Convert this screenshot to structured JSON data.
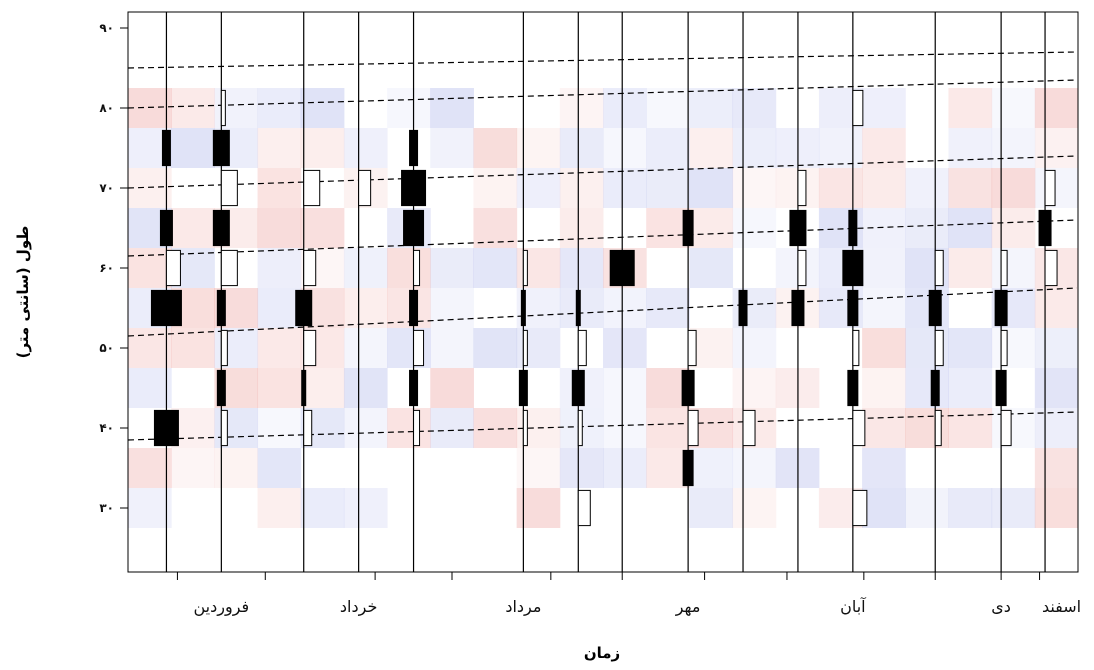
{
  "chart_data": {
    "type": "heatmap",
    "title": "",
    "xlabel": "زمان",
    "ylabel": "طول (سانتی متر)",
    "x_tick_labels": [
      "فروردین",
      "خرداد",
      "مرداد",
      "مهر",
      "آبان",
      "دی",
      "اسفند"
    ],
    "y_ticks": [
      {
        "value": 30,
        "label": "۳۰"
      },
      {
        "value": 40,
        "label": "۴۰"
      },
      {
        "value": 50,
        "label": "۵۰"
      },
      {
        "value": 60,
        "label": "۶۰"
      },
      {
        "value": 70,
        "label": "۷۰"
      },
      {
        "value": 80,
        "label": "۸۰"
      },
      {
        "value": 90,
        "label": "۹۰"
      }
    ],
    "ylim": [
      22,
      92
    ],
    "xlim": [
      0,
      12
    ],
    "grid": false,
    "length_bins": [
      30,
      35,
      40,
      45,
      50,
      55,
      60,
      65,
      70,
      75,
      80
    ],
    "samples": [
      {
        "t": 0.7,
        "freq": [
          0,
          0,
          1.2,
          0,
          0,
          1.5,
          0.7,
          0.6,
          0,
          0.4,
          0
        ]
      },
      {
        "t": 1.7,
        "freq": [
          0,
          0,
          0.3,
          0.4,
          0.3,
          0.4,
          0.8,
          0.8,
          0.8,
          0.8,
          0.2
        ]
      },
      {
        "t": 3.2,
        "freq": [
          0,
          0,
          0.4,
          0.2,
          0.6,
          0.8,
          0.6,
          0,
          0.8,
          0,
          0
        ]
      },
      {
        "t": 4.2,
        "freq": [
          0,
          0,
          0,
          0,
          0,
          0,
          0,
          0,
          0.6,
          0,
          0
        ]
      },
      {
        "t": 5.2,
        "freq": [
          0,
          0,
          0.3,
          0.4,
          0.5,
          0.4,
          0.3,
          1.0,
          1.2,
          0.4,
          0
        ]
      },
      {
        "t": 7.2,
        "freq": [
          0,
          0,
          0.2,
          0.4,
          0.2,
          0.2,
          0.2,
          0,
          0,
          0,
          0
        ]
      },
      {
        "t": 8.2,
        "freq": [
          0.6,
          0,
          0.2,
          0.6,
          0.4,
          0.2,
          0,
          0,
          0,
          0,
          0
        ]
      },
      {
        "t": 9.0,
        "freq": [
          0,
          0,
          0,
          0,
          0,
          0,
          1.2,
          0,
          0,
          0,
          0
        ]
      },
      {
        "t": 10.2,
        "freq": [
          0,
          0.5,
          0.5,
          0.6,
          0.4,
          0,
          0,
          0.5,
          0,
          0,
          0
        ]
      },
      {
        "t": 11.2,
        "freq": [
          0,
          0,
          0.6,
          0,
          0,
          0.4,
          0,
          0,
          0,
          0,
          0
        ]
      },
      {
        "t": 12.2,
        "freq": [
          0,
          0,
          0,
          0,
          0,
          0.6,
          0.4,
          0.8,
          0.4,
          0,
          0
        ]
      },
      {
        "t": 13.2,
        "freq": [
          0.7,
          0,
          0.6,
          0.5,
          0.3,
          0.5,
          1.0,
          0.4,
          0,
          0,
          0.5
        ]
      },
      {
        "t": 14.7,
        "freq": [
          0,
          0,
          0.3,
          0.4,
          0.4,
          0.6,
          0.4,
          0,
          0,
          0,
          0
        ]
      },
      {
        "t": 15.9,
        "freq": [
          0,
          0,
          0.5,
          0.5,
          0.3,
          0.6,
          0.3,
          0,
          0,
          0,
          0
        ]
      },
      {
        "t": 16.7,
        "freq": [
          0,
          0,
          0,
          0,
          0,
          0,
          0.6,
          0.6,
          0.5,
          0,
          0
        ]
      }
    ],
    "cohorts": [
      {
        "from": [
          0.0,
          38.5
        ],
        "to": [
          12.0,
          42.0
        ]
      },
      {
        "from": [
          0.0,
          51.5
        ],
        "to": [
          12.0,
          57.5
        ]
      },
      {
        "from": [
          0.0,
          61.5
        ],
        "to": [
          12.0,
          66.0
        ]
      },
      {
        "from": [
          0.0,
          70.0
        ],
        "to": [
          12.0,
          74.0
        ]
      },
      {
        "from": [
          0.0,
          80.0
        ],
        "to": [
          12.0,
          83.5
        ]
      },
      {
        "from": [
          0.0,
          85.0
        ],
        "to": [
          12.0,
          87.0
        ]
      }
    ],
    "colors": {
      "negative": "#d73027",
      "positive": "#4a5ad0",
      "bar_fill": "#000000",
      "line": "#000000"
    }
  }
}
